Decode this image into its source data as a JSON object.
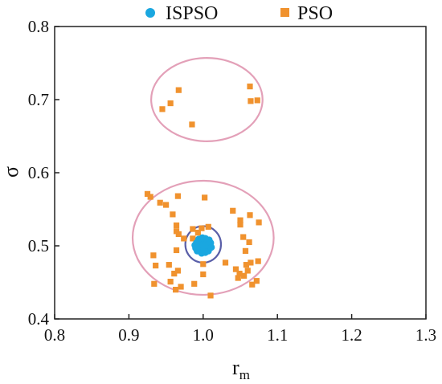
{
  "chart_data": {
    "type": "scatter",
    "xlabel": "r",
    "xlabel_sub": "m",
    "ylabel": "σ",
    "xlim": [
      0.8,
      1.3
    ],
    "ylim": [
      0.4,
      0.8
    ],
    "x_ticks": [
      0.8,
      0.9,
      1.0,
      1.1,
      1.2,
      1.3
    ],
    "x_tick_labels": [
      "0.8",
      "0.9",
      "1.0",
      "1.1",
      "1.2",
      "1.3"
    ],
    "y_ticks": [
      0.4,
      0.5,
      0.6,
      0.7,
      0.8
    ],
    "y_tick_labels": [
      "0.4",
      "0.5",
      "0.6",
      "0.7",
      "0.8"
    ],
    "grid": false,
    "legend_position": "top",
    "series": [
      {
        "name": "ISPSO",
        "marker": "circle",
        "color": "#1aa7e0",
        "points": [
          [
            0.99,
            0.497
          ],
          [
            0.993,
            0.502
          ],
          [
            0.995,
            0.507
          ],
          [
            0.997,
            0.494
          ],
          [
            0.998,
            0.5
          ],
          [
            1.0,
            0.505
          ],
          [
            1.002,
            0.498
          ],
          [
            1.004,
            0.503
          ],
          [
            1.006,
            0.496
          ],
          [
            1.008,
            0.508
          ],
          [
            1.009,
            0.5
          ],
          [
            0.994,
            0.509
          ],
          [
            0.999,
            0.511
          ],
          [
            1.003,
            0.491
          ],
          [
            0.992,
            0.493
          ],
          [
            1.007,
            0.493
          ],
          [
            0.996,
            0.499
          ],
          [
            1.001,
            0.495
          ],
          [
            1.005,
            0.501
          ],
          [
            0.991,
            0.504
          ],
          [
            1.01,
            0.504
          ],
          [
            0.998,
            0.49
          ],
          [
            1.003,
            0.51
          ],
          [
            0.989,
            0.501
          ],
          [
            1.011,
            0.498
          ]
        ]
      },
      {
        "name": "PSO",
        "marker": "square",
        "color": "#f0922e",
        "points": [
          [
            0.945,
            0.687
          ],
          [
            0.956,
            0.695
          ],
          [
            0.967,
            0.713
          ],
          [
            0.985,
            0.666
          ],
          [
            1.063,
            0.718
          ],
          [
            1.064,
            0.698
          ],
          [
            1.073,
            0.699
          ],
          [
            0.925,
            0.571
          ],
          [
            0.929,
            0.567
          ],
          [
            0.942,
            0.559
          ],
          [
            0.95,
            0.556
          ],
          [
            0.959,
            0.543
          ],
          [
            0.966,
            0.568
          ],
          [
            0.964,
            0.528
          ],
          [
            0.964,
            0.52
          ],
          [
            0.967,
            0.516
          ],
          [
            0.974,
            0.51
          ],
          [
            0.986,
            0.523
          ],
          [
            1.002,
            0.566
          ],
          [
            1.04,
            0.548
          ],
          [
            1.05,
            0.535
          ],
          [
            1.063,
            0.542
          ],
          [
            1.075,
            0.532
          ],
          [
            0.986,
            0.51
          ],
          [
            0.993,
            0.518
          ],
          [
            0.998,
            0.524
          ],
          [
            1.007,
            0.526
          ],
          [
            0.964,
            0.494
          ],
          [
            1.05,
            0.529
          ],
          [
            1.054,
            0.512
          ],
          [
            1.062,
            0.505
          ],
          [
            1.057,
            0.493
          ],
          [
            0.933,
            0.487
          ],
          [
            0.936,
            0.473
          ],
          [
            0.954,
            0.474
          ],
          [
            0.961,
            0.462
          ],
          [
            0.966,
            0.466
          ],
          [
            0.934,
            0.448
          ],
          [
            0.956,
            0.451
          ],
          [
            0.963,
            0.44
          ],
          [
            0.97,
            0.444
          ],
          [
            0.988,
            0.448
          ],
          [
            1.0,
            0.461
          ],
          [
            1.0,
            0.475
          ],
          [
            1.01,
            0.432
          ],
          [
            1.03,
            0.477
          ],
          [
            1.044,
            0.468
          ],
          [
            1.049,
            0.462
          ],
          [
            1.047,
            0.456
          ],
          [
            1.058,
            0.474
          ],
          [
            1.06,
            0.466
          ],
          [
            1.064,
            0.477
          ],
          [
            1.066,
            0.447
          ],
          [
            1.072,
            0.452
          ],
          [
            1.074,
            0.479
          ],
          [
            1.055,
            0.459
          ]
        ]
      }
    ],
    "annotations": [
      {
        "shape": "ellipse",
        "cx": 1.005,
        "cy": 0.7,
        "rx": 0.075,
        "ry": 0.057,
        "color": "#e3a0b8"
      },
      {
        "shape": "ellipse",
        "cx": 1.0,
        "cy": 0.511,
        "rx": 0.095,
        "ry": 0.078,
        "color": "#e3a0b8"
      },
      {
        "shape": "ellipse",
        "cx": 1.0,
        "cy": 0.502,
        "rx": 0.024,
        "ry": 0.025,
        "color": "#5a5fa8"
      }
    ]
  }
}
